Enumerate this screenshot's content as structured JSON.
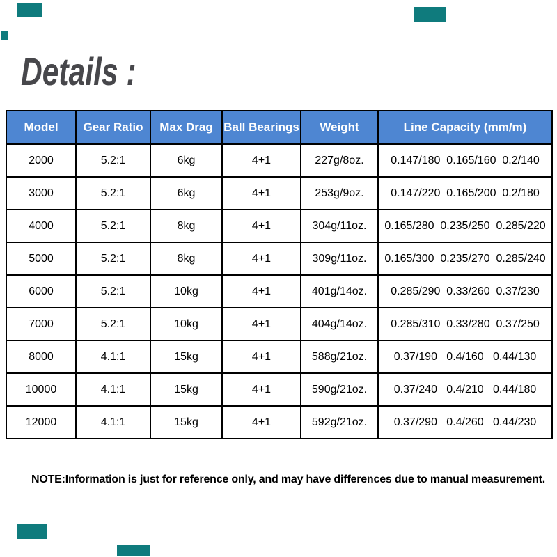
{
  "page": {
    "title": "Details :",
    "note": "NOTE:Information is just for reference only, and may have differences due to manual measurement."
  },
  "colors": {
    "header_bg": "#4e86d2",
    "header_text": "#ffffff",
    "title_color": "#47474b",
    "table_border": "#000000",
    "redaction_teal": "#0f7b7d"
  },
  "table": {
    "column_keys": [
      "model",
      "gear-ratio",
      "max-drag",
      "ball-bearings",
      "weight",
      "line-capacity"
    ],
    "headers": [
      "Model",
      "Gear Ratio",
      "Max Drag",
      "Ball Bearings",
      "Weight",
      "Line Capacity (mm/m)"
    ],
    "rows": [
      [
        "2000",
        "5.2:1",
        "6kg",
        "4+1",
        "227g/8oz.",
        "0.147/180  0.165/160  0.2/140"
      ],
      [
        "3000",
        "5.2:1",
        "6kg",
        "4+1",
        "253g/9oz.",
        "0.147/220  0.165/200  0.2/180"
      ],
      [
        "4000",
        "5.2:1",
        "8kg",
        "4+1",
        "304g/11oz.",
        "0.165/280  0.235/250  0.285/220"
      ],
      [
        "5000",
        "5.2:1",
        "8kg",
        "4+1",
        "309g/11oz.",
        "0.165/300  0.235/270  0.285/240"
      ],
      [
        "6000",
        "5.2:1",
        "10kg",
        "4+1",
        "401g/14oz.",
        "0.285/290  0.33/260  0.37/230"
      ],
      [
        "7000",
        "5.2:1",
        "10kg",
        "4+1",
        "404g/14oz.",
        "0.285/310  0.33/280  0.37/250"
      ],
      [
        "8000",
        "4.1:1",
        "15kg",
        "4+1",
        "588g/21oz.",
        "0.37/190   0.4/160   0.44/130"
      ],
      [
        "10000",
        "4.1:1",
        "15kg",
        "4+1",
        "590g/21oz.",
        "0.37/240   0.4/210   0.44/180"
      ],
      [
        "12000",
        "4.1:1",
        "15kg",
        "4+1",
        "592g/21oz.",
        "0.37/290   0.4/260   0.44/230"
      ]
    ]
  }
}
